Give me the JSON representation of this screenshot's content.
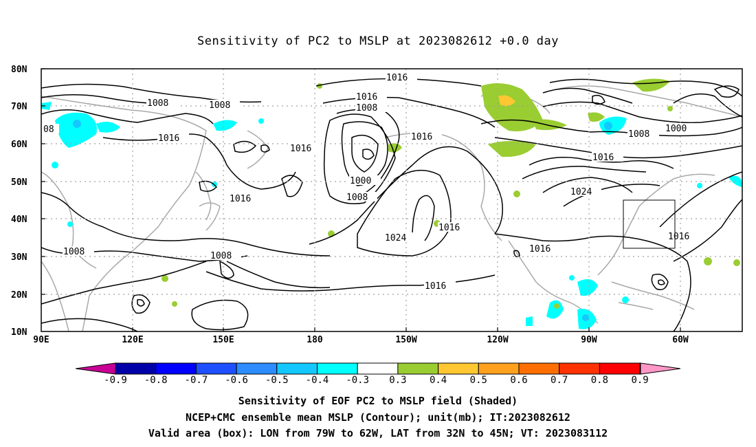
{
  "title": "Sensitivity of PC2 to MSLP at 2023082612 +0.0 day",
  "lat_ticks": [
    "80N",
    "70N",
    "60N",
    "50N",
    "40N",
    "30N",
    "20N",
    "10N"
  ],
  "lon_ticks": [
    "90E",
    "120E",
    "150E",
    "180",
    "150W",
    "120W",
    "90W",
    "60W"
  ],
  "contour_labels": [
    {
      "text": "1016",
      "key": "a"
    },
    {
      "text": "1016",
      "key": "b"
    },
    {
      "text": "1008",
      "key": "c"
    },
    {
      "text": "1008",
      "key": "d"
    },
    {
      "text": "1008",
      "key": "e"
    },
    {
      "text": "08",
      "key": "f"
    },
    {
      "text": "1016",
      "key": "g"
    },
    {
      "text": "1016",
      "key": "h"
    },
    {
      "text": "1016",
      "key": "i"
    },
    {
      "text": "1000",
      "key": "j"
    },
    {
      "text": "1008",
      "key": "k"
    },
    {
      "text": "1016",
      "key": "l"
    },
    {
      "text": "1024",
      "key": "m"
    },
    {
      "text": "1016",
      "key": "n"
    },
    {
      "text": "1008",
      "key": "o"
    },
    {
      "text": "1008",
      "key": "p"
    },
    {
      "text": "1016",
      "key": "q"
    },
    {
      "text": "1016",
      "key": "r"
    },
    {
      "text": "1000",
      "key": "s"
    },
    {
      "text": "1008",
      "key": "t"
    },
    {
      "text": "1016",
      "key": "u"
    },
    {
      "text": "1024",
      "key": "v"
    },
    {
      "text": "1016",
      "key": "w"
    }
  ],
  "colorbar": {
    "labels": [
      "-0.9",
      "-0.8",
      "-0.7",
      "-0.6",
      "-0.5",
      "-0.4",
      "-0.3",
      "0.3",
      "0.4",
      "0.5",
      "0.6",
      "0.7",
      "0.8",
      "0.9"
    ],
    "colors": [
      "#0000a8",
      "#0000ff",
      "#1e50ff",
      "#2d8cff",
      "#14c8ff",
      "#00ffff",
      "#ffffff",
      "#9acd32",
      "#ffc832",
      "#ffa01e",
      "#ff6e00",
      "#ff3200",
      "#ff0000"
    ],
    "low_end_color": "#c80096",
    "high_end_color": "#ff96c8"
  },
  "footer": {
    "line1": "Sensitivity of EOF PC2 to MSLP field (Shaded)",
    "line2": "NCEP+CMC ensemble mean MSLP (Contour); unit(mb); IT:2023082612",
    "line3": "Valid area (box): LON from 79W to 62W, LAT from 32N to 45N; VT: 2023083112"
  }
}
